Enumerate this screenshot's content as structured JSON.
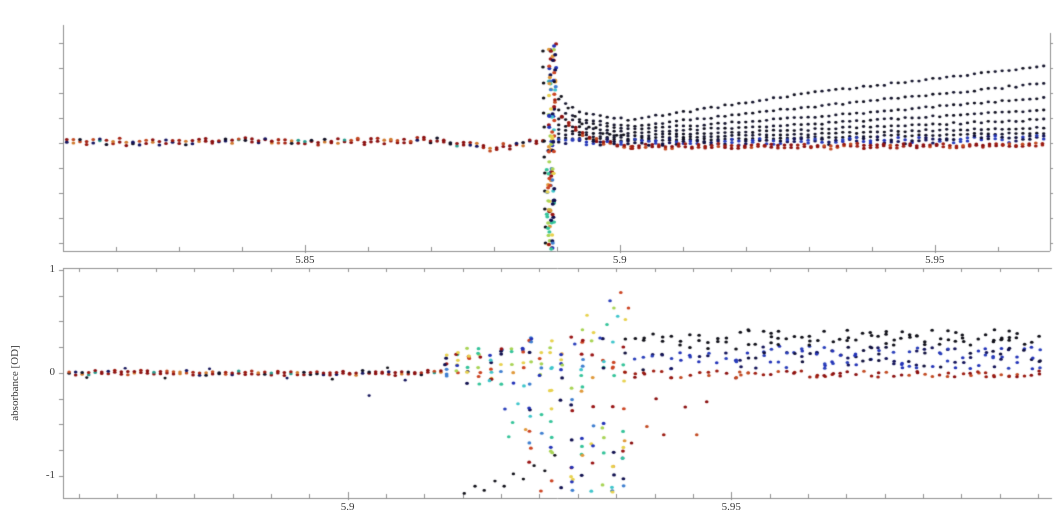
{
  "figure": {
    "background": "#ffffff",
    "axis_color": "#8f8f8f",
    "label_color": "#3a3a3a",
    "palettes": {
      "base": [
        "#8b1010",
        "#8b1010",
        "#8b1010",
        "#9b1a10",
        "#a52414",
        "#c24a22",
        "#d07a2e",
        "#14145e",
        "#101024",
        "#2a9d8f",
        "#8b1010",
        "#8b1010"
      ],
      "jet": [
        "#10104f",
        "#2333b8",
        "#3f7fd0",
        "#3ec6cc",
        "#35c49a",
        "#a8d455",
        "#e8d24e",
        "#e0993a",
        "#cc4423",
        "#991414"
      ],
      "jet2": [
        "#3ec6cc",
        "#e8d24e",
        "#e0993a",
        "#cc4423",
        "#2a3fbb",
        "#35c49a",
        "#a8d455"
      ],
      "fan": [
        "#10101f",
        "#16162e"
      ],
      "black": [
        "#101018"
      ],
      "navyband": [
        "#14145a",
        "#2a3fbb",
        "#10103c",
        "#2333b8"
      ],
      "redband": [
        "#8b1010",
        "#a02014",
        "#9b1a10",
        "#c24a22",
        "#8b1010"
      ],
      "strays": [
        "#101018",
        "#14145a"
      ]
    }
  },
  "chart_data": [
    {
      "type": "scatter",
      "title": "",
      "xlabel": "",
      "ylabel": "",
      "xlim": [
        5.8116,
        5.9683
      ],
      "ylim": [
        -1.08,
        1.18
      ],
      "x_tick_step": 0.01,
      "y_tick_step": 0.25,
      "grid": false,
      "legend": "none",
      "x_ticks_labeled": [
        {
          "value": 5.85,
          "label": "5.85"
        },
        {
          "value": 5.9,
          "label": "5.9"
        },
        {
          "value": 5.95,
          "label": "5.95"
        }
      ],
      "y_ticks_labeled": [],
      "series": [
        {
          "name": "baseline",
          "kind": "dotline",
          "palette": "base",
          "size": 1.55,
          "step": 0.00105,
          "jitter": 0.02,
          "rows": 2,
          "rowgap": 0.025,
          "seed": 11,
          "pts": [
            [
              5.8122,
              0.02
            ],
            [
              5.825,
              0.012
            ],
            [
              5.838,
              0.026
            ],
            [
              5.852,
              0.012
            ],
            [
              5.862,
              0.022
            ],
            [
              5.87,
              0.03
            ],
            [
              5.8755,
              -0.012
            ],
            [
              5.879,
              -0.055
            ],
            [
              5.8825,
              -0.028
            ],
            [
              5.885,
              0.012
            ],
            [
              5.8878,
              0.04
            ]
          ]
        },
        {
          "name": "spike-lead-dots",
          "kind": "scatter",
          "palette": "black",
          "size": 1.5,
          "seed": 12,
          "pts": [
            [
              5.8878,
              0.92
            ],
            [
              5.8878,
              0.76
            ],
            [
              5.8879,
              0.6
            ],
            [
              5.8879,
              0.45
            ],
            [
              5.8879,
              0.3
            ],
            [
              5.888,
              0.16
            ],
            [
              5.888,
              0.02
            ],
            [
              5.888,
              -0.14
            ],
            [
              5.8881,
              -0.3
            ],
            [
              5.8881,
              -0.48
            ],
            [
              5.8881,
              -0.66
            ],
            [
              5.8882,
              -0.84
            ],
            [
              5.8882,
              -1.0
            ]
          ]
        },
        {
          "name": "spike-upper",
          "kind": "box",
          "x0": 5.8886,
          "x1": 5.8899,
          "n": 62,
          "ymin": -0.12,
          "ymax": 1.02,
          "palette": "jet",
          "size": 1.7,
          "seed": 13
        },
        {
          "name": "spike-lower",
          "kind": "box",
          "x0": 5.8884,
          "x1": 5.8896,
          "n": 55,
          "ymin": -1.06,
          "ymax": -0.18,
          "palette": "jet",
          "size": 1.7,
          "seed": 14
        },
        {
          "name": "decay-black",
          "kind": "dotline",
          "palette": "black",
          "size": 1.4,
          "step": 0.0011,
          "jitter": 0.012,
          "rows": 1,
          "rowgap": 0,
          "seed": 15,
          "pts": [
            [
              5.8896,
              0.62
            ],
            [
              5.8915,
              0.36
            ],
            [
              5.894,
              0.2
            ],
            [
              5.8975,
              0.1
            ],
            [
              5.9016,
              0.07
            ]
          ]
        },
        {
          "name": "decay-red",
          "kind": "dotline",
          "palette": "redband",
          "size": 1.6,
          "step": 0.0011,
          "jitter": 0.015,
          "rows": 2,
          "rowgap": 0.02,
          "seed": 16,
          "pts": [
            [
              5.8897,
              0.42
            ],
            [
              5.891,
              0.25
            ],
            [
              5.8935,
              0.1
            ],
            [
              5.897,
              0.0
            ],
            [
              5.902,
              -0.03
            ]
          ]
        },
        {
          "name": "fan-1",
          "kind": "dotline",
          "palette": "fan",
          "size": 1.4,
          "step": 0.0011,
          "jitter": 0.008,
          "rows": 1,
          "rowgap": 0,
          "seed": 21,
          "pts": [
            [
              5.8903,
              0.44
            ],
            [
              5.8938,
              0.3
            ],
            [
              5.9016,
              0.23
            ],
            [
              5.93,
              0.5
            ],
            [
              5.968,
              0.77
            ]
          ]
        },
        {
          "name": "fan-2",
          "kind": "dotline",
          "palette": "fan",
          "size": 1.4,
          "step": 0.0011,
          "jitter": 0.008,
          "rows": 1,
          "rowgap": 0,
          "seed": 22,
          "pts": [
            [
              5.8903,
              0.33
            ],
            [
              5.8938,
              0.24
            ],
            [
              5.9016,
              0.17
            ],
            [
              5.93,
              0.36
            ],
            [
              5.968,
              0.6
            ]
          ]
        },
        {
          "name": "fan-3",
          "kind": "dotline",
          "palette": "fan",
          "size": 1.4,
          "step": 0.0011,
          "jitter": 0.008,
          "rows": 1,
          "rowgap": 0,
          "seed": 23,
          "pts": [
            [
              5.8903,
              0.25
            ],
            [
              5.9016,
              0.13
            ],
            [
              5.93,
              0.26
            ],
            [
              5.968,
              0.455
            ]
          ]
        },
        {
          "name": "fan-4",
          "kind": "dotline",
          "palette": "fan",
          "size": 1.4,
          "step": 0.0011,
          "jitter": 0.008,
          "rows": 1,
          "rowgap": 0,
          "seed": 24,
          "pts": [
            [
              5.8903,
              0.18
            ],
            [
              5.9016,
              0.1
            ],
            [
              5.93,
              0.19
            ],
            [
              5.968,
              0.335
            ]
          ]
        },
        {
          "name": "fan-5",
          "kind": "dotline",
          "palette": "fan",
          "size": 1.4,
          "step": 0.0011,
          "jitter": 0.008,
          "rows": 1,
          "rowgap": 0,
          "seed": 25,
          "pts": [
            [
              5.8903,
              0.13
            ],
            [
              5.9016,
              0.07
            ],
            [
              5.93,
              0.135
            ],
            [
              5.968,
              0.235
            ]
          ]
        },
        {
          "name": "fan-6",
          "kind": "dotline",
          "palette": "fan",
          "size": 1.4,
          "step": 0.0011,
          "jitter": 0.008,
          "rows": 1,
          "rowgap": 0,
          "seed": 26,
          "pts": [
            [
              5.8903,
              0.09
            ],
            [
              5.9016,
              0.045
            ],
            [
              5.93,
              0.09
            ],
            [
              5.968,
              0.155
            ]
          ]
        },
        {
          "name": "fan-7",
          "kind": "dotline",
          "palette": "fan",
          "size": 1.4,
          "step": 0.0011,
          "jitter": 0.008,
          "rows": 1,
          "rowgap": 0,
          "seed": 27,
          "pts": [
            [
              5.8903,
              0.055
            ],
            [
              5.9016,
              0.025
            ],
            [
              5.93,
              0.055
            ],
            [
              5.968,
              0.1
            ]
          ]
        },
        {
          "name": "navy-band",
          "kind": "dotline",
          "palette": "navyband",
          "size": 1.5,
          "step": 0.0011,
          "jitter": 0.02,
          "rows": 2,
          "rowgap": 0.025,
          "seed": 28,
          "pts": [
            [
              5.8903,
              0.02
            ],
            [
              5.9016,
              0.0
            ],
            [
              5.93,
              0.02
            ],
            [
              5.968,
              0.05
            ]
          ]
        },
        {
          "name": "red-band-right",
          "kind": "dotline",
          "palette": "redband",
          "size": 1.55,
          "step": 0.00105,
          "jitter": 0.015,
          "rows": 2,
          "rowgap": 0.02,
          "seed": 29,
          "pts": [
            [
              5.902,
              -0.03
            ],
            [
              5.93,
              -0.035
            ],
            [
              5.968,
              -0.015
            ]
          ]
        }
      ]
    },
    {
      "type": "scatter",
      "title": "",
      "xlabel": "",
      "ylabel": "absorbance [OD]",
      "xlim": [
        5.8629,
        5.9918
      ],
      "ylim": [
        -1.214,
        1.019
      ],
      "x_tick_step": 0.005,
      "y_tick_step": 0.25,
      "grid": false,
      "legend": "none",
      "x_ticks_labeled": [
        {
          "value": 5.9,
          "label": "5.9"
        },
        {
          "value": 5.95,
          "label": "5.95"
        }
      ],
      "y_ticks_labeled": [
        {
          "value": 1,
          "label": "1"
        },
        {
          "value": 0,
          "label": "0"
        },
        {
          "value": -1,
          "label": "-1"
        }
      ],
      "series": [
        {
          "name": "baseline",
          "kind": "dotline",
          "palette": "base",
          "size": 1.5,
          "step": 0.00085,
          "jitter": 0.012,
          "rows": 2,
          "rowgap": 0.02,
          "seed": 31,
          "pts": [
            [
              5.8637,
              0.0
            ],
            [
              5.88,
              0.002
            ],
            [
              5.9,
              -0.002
            ],
            [
              5.9128,
              0.008
            ]
          ]
        },
        {
          "name": "baseline-strays",
          "kind": "scatter",
          "palette": "strays",
          "size": 1.3,
          "seed": 32,
          "pts": [
            [
              5.866,
              -0.045
            ],
            [
              5.871,
              0.045
            ],
            [
              5.8762,
              -0.05
            ],
            [
              5.882,
              0.04
            ],
            [
              5.8921,
              -0.05
            ],
            [
              5.898,
              -0.06
            ],
            [
              5.9052,
              0.05
            ],
            [
              5.9028,
              -0.22
            ],
            [
              5.9075,
              -0.07
            ]
          ]
        },
        {
          "name": "pre-clusters",
          "kind": "cols",
          "x0": 5.9128,
          "x1": 5.9235,
          "step": 0.00145,
          "ymin": -0.13,
          "ymax": 0.24,
          "nmin": 5,
          "nmax": 9,
          "palette": "jet",
          "size": 1.6,
          "seed": 33
        },
        {
          "name": "pre-cluster-tails",
          "kind": "scatter",
          "palette": "jet2",
          "size": 1.5,
          "seed": 34,
          "pts": [
            [
              5.9205,
              -0.35
            ],
            [
              5.9215,
              -0.48
            ],
            [
              5.9222,
              -0.3
            ],
            [
              5.9232,
              -0.55
            ],
            [
              5.9238,
              -0.42
            ],
            [
              5.921,
              -0.62
            ]
          ]
        },
        {
          "name": "deep-diagonal",
          "kind": "scatter",
          "palette": "black",
          "size": 1.4,
          "seed": 35,
          "pts": [
            [
              5.9152,
              -1.17
            ],
            [
              5.9166,
              -1.1
            ],
            [
              5.9178,
              -1.14
            ],
            [
              5.9192,
              -1.05
            ],
            [
              5.9204,
              -1.1
            ],
            [
              5.9216,
              -0.98
            ],
            [
              5.9229,
              -1.03
            ],
            [
              5.9243,
              -0.9
            ],
            [
              5.9257,
              -0.95
            ],
            [
              5.927,
              -0.8
            ]
          ]
        },
        {
          "name": "chaos",
          "kind": "cols",
          "x0": 5.9238,
          "x1": 5.936,
          "step": 0.00135,
          "ymin": -1.18,
          "ymax": 0.4,
          "nmin": 9,
          "nmax": 14,
          "palette": "jet",
          "size": 1.6,
          "seed": 36
        },
        {
          "name": "high-outliers",
          "kind": "scatter",
          "palette": "jet2",
          "size": 1.5,
          "seed": 37,
          "pts": [
            [
              5.9356,
              0.78
            ],
            [
              5.9347,
              0.63
            ],
            [
              5.9352,
              0.55
            ],
            [
              5.9338,
              0.47
            ],
            [
              5.9362,
              0.52
            ],
            [
              5.9329,
              0.34
            ],
            [
              5.9312,
              0.56
            ],
            [
              5.9306,
              0.42
            ],
            [
              5.9296,
              0.28
            ],
            [
              5.9366,
              0.63
            ],
            [
              5.9342,
              0.7
            ]
          ]
        },
        {
          "name": "mid-cols",
          "kind": "strat",
          "x0": 5.9362,
          "x1": 5.951,
          "step": 0.0012,
          "size": 1.5,
          "seed": 38,
          "strata": [
            {
              "ymin": -0.05,
              "ymax": 0.02,
              "nmin": 1,
              "nmax": 2,
              "palette": "redband"
            },
            {
              "ymin": 0.03,
              "ymax": 0.2,
              "nmin": 1,
              "nmax": 3,
              "palette": "navyband"
            },
            {
              "ymin": 0.22,
              "ymax": 0.38,
              "nmin": 1,
              "nmax": 2,
              "palette": "black"
            }
          ]
        },
        {
          "name": "mid-deep-reds",
          "kind": "scatter",
          "palette": "redband",
          "size": 1.5,
          "seed": 39,
          "pts": [
            [
              5.937,
              -0.68
            ],
            [
              5.939,
              -0.52
            ],
            [
              5.9412,
              -0.6
            ],
            [
              5.944,
              -0.33
            ],
            [
              5.9402,
              -0.25
            ],
            [
              5.9455,
              -0.6
            ],
            [
              5.9468,
              -0.28
            ]
          ]
        },
        {
          "name": "right-cols",
          "kind": "strat",
          "x0": 5.9512,
          "x1": 5.9905,
          "step": 0.001,
          "size": 1.5,
          "seed": 40,
          "strata": [
            {
              "ymin": -0.04,
              "ymax": 0.02,
              "nmin": 1,
              "nmax": 2,
              "palette": "redband"
            },
            {
              "ymin": 0.04,
              "ymax": 0.26,
              "nmin": 2,
              "nmax": 4,
              "palette": "navyband"
            },
            {
              "ymin": 0.27,
              "ymax": 0.42,
              "nmin": 1,
              "nmax": 3,
              "palette": "black"
            }
          ]
        }
      ]
    }
  ]
}
